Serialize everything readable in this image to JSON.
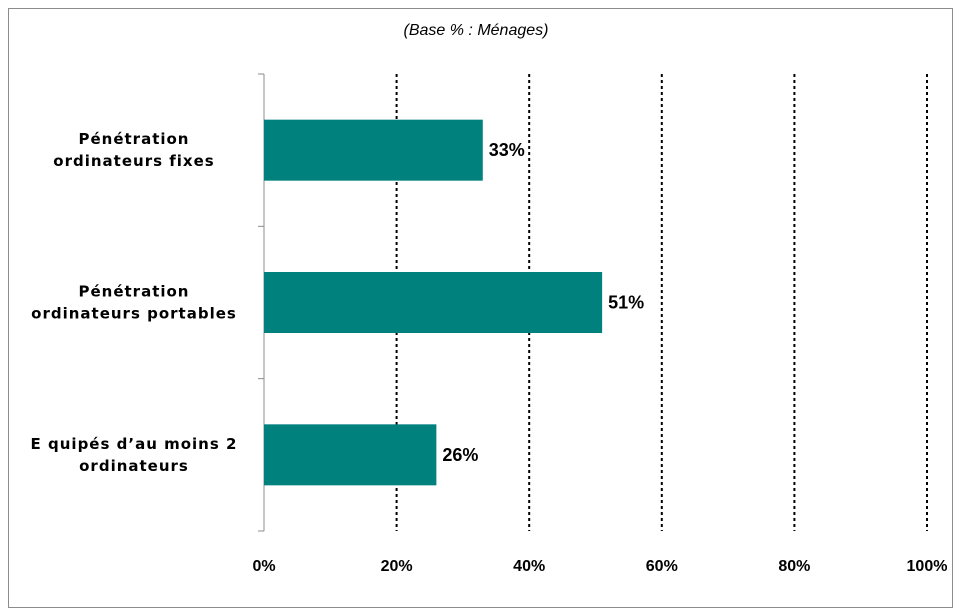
{
  "chart_data": {
    "type": "bar",
    "orientation": "horizontal",
    "subtitle": "(Base % : Ménages)",
    "categories": [
      [
        "Pénétration",
        "ordinateurs fixes"
      ],
      [
        "Pénétration",
        "ordinateurs portables"
      ],
      [
        "E quipés d’au moins 2",
        "ordinateurs"
      ]
    ],
    "values": [
      33,
      51,
      26
    ],
    "data_labels": [
      "33%",
      "51%",
      "26%"
    ],
    "xlim": [
      0,
      100
    ],
    "x_ticks": [
      "0%",
      "20%",
      "40%",
      "60%",
      "80%",
      "100%"
    ],
    "gridlines": "dotted vertical",
    "bar_color": "#00817e"
  }
}
